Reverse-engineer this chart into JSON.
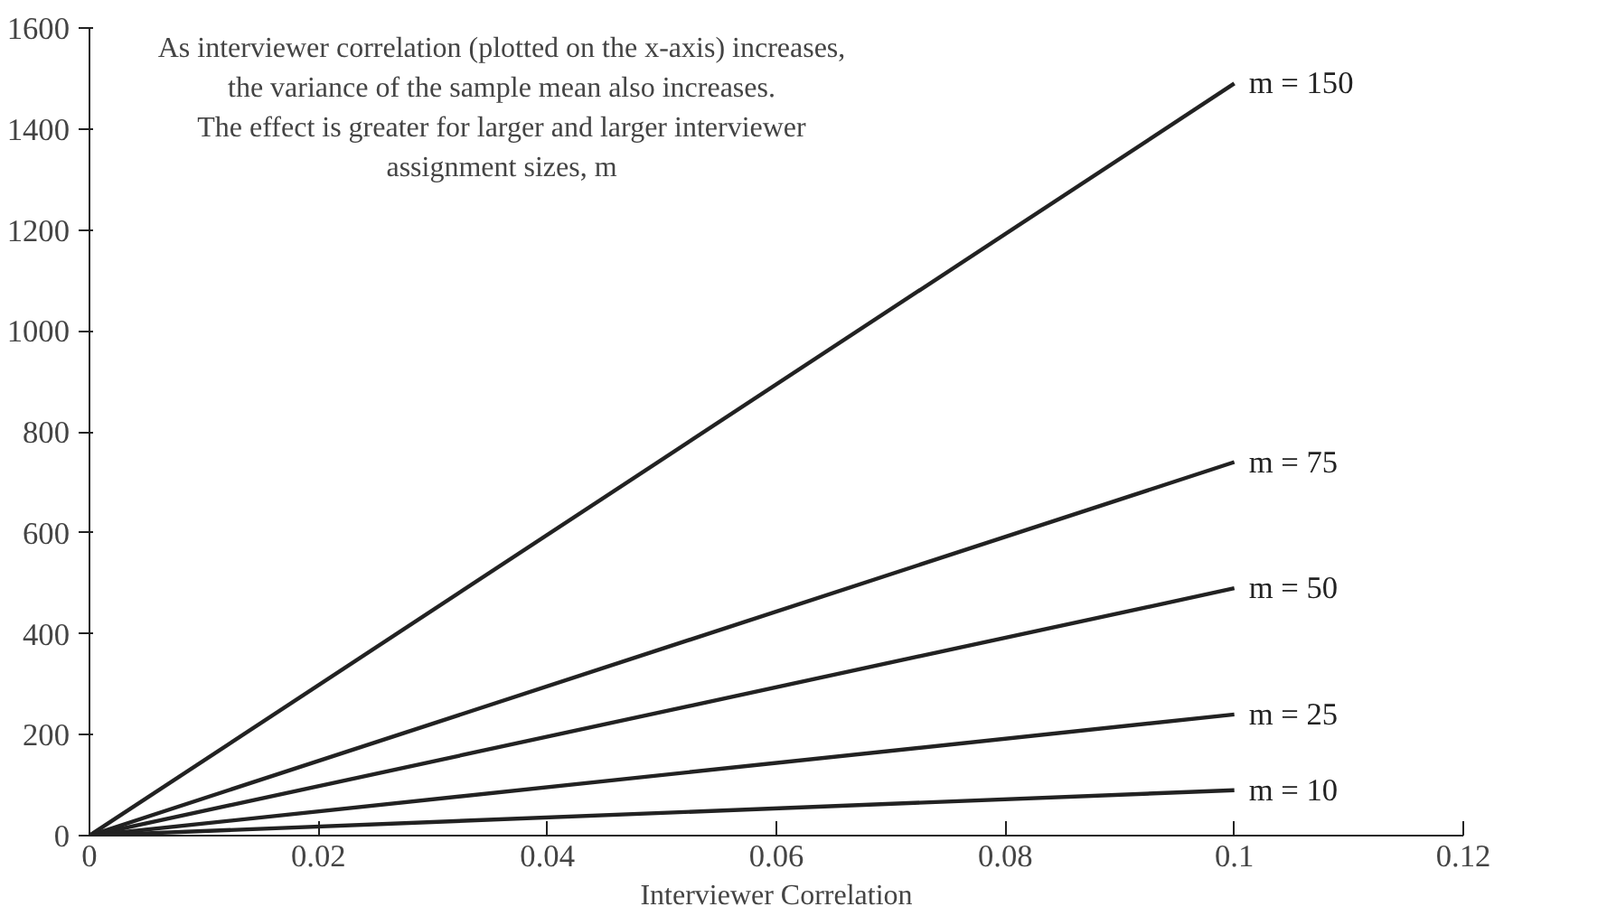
{
  "chart_data": {
    "type": "line",
    "xlabel": "Interviewer Correlation",
    "annotations": [
      "As interviewer correlation (plotted on the x-axis) increases,\nthe variance of the sample mean also increases.\nThe effect is greater for larger and larger interviewer\nassignment sizes, m"
    ],
    "x": [
      0,
      0.1
    ],
    "series": [
      {
        "name": "m = 150",
        "color": "#222222",
        "values": [
          0,
          1490
        ]
      },
      {
        "name": "m = 75",
        "color": "#222222",
        "values": [
          0,
          740
        ]
      },
      {
        "name": "m = 50",
        "color": "#222222",
        "values": [
          0,
          490
        ]
      },
      {
        "name": "m = 25",
        "color": "#222222",
        "values": [
          0,
          240
        ]
      },
      {
        "name": "m = 10",
        "color": "#222222",
        "values": [
          0,
          90
        ]
      }
    ],
    "xlim": [
      0,
      0.12
    ],
    "ylim": [
      0,
      1600
    ],
    "xticks": [
      0,
      0.02,
      0.04,
      0.06,
      0.08,
      0.1,
      0.12
    ],
    "yticks": [
      0,
      200,
      400,
      600,
      800,
      1000,
      1200,
      1400,
      1600
    ],
    "grid": false,
    "marker": "none",
    "line_style": "solid"
  }
}
